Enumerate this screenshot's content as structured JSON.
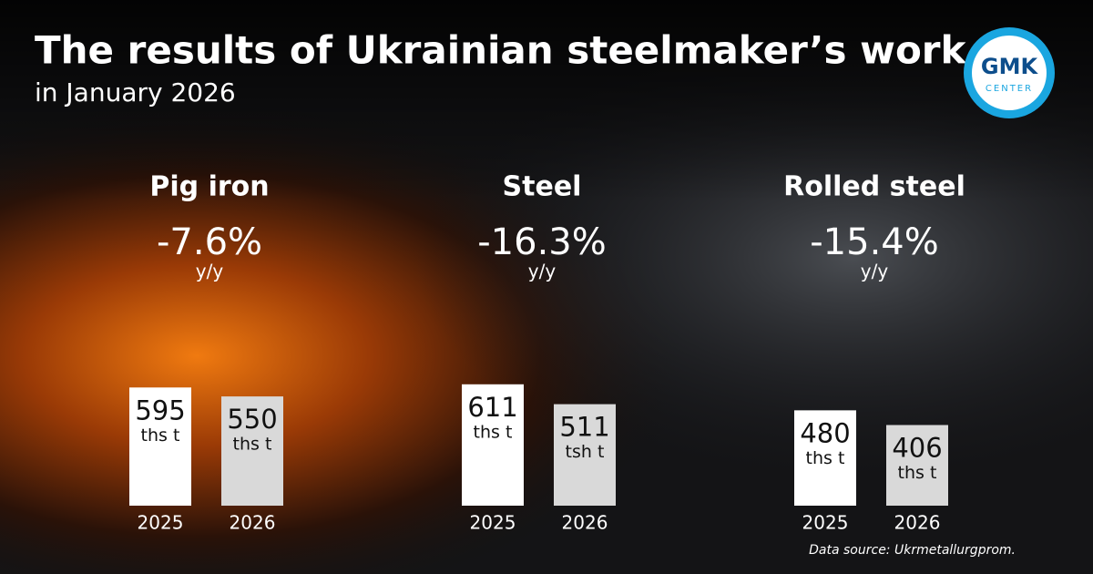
{
  "header": {
    "title": "The results of Ukrainian steelmaker’s work",
    "subtitle": "in January 2026"
  },
  "logo": {
    "text": "GMK",
    "subtext": "CENTER"
  },
  "chart_data": [
    {
      "type": "bar",
      "title": "Pig iron",
      "change": "-7.6%",
      "change_label": "y/y",
      "categories": [
        "2025",
        "2026"
      ],
      "values": [
        595,
        550
      ],
      "units": [
        "ths t",
        "ths t"
      ],
      "colors": [
        "#ffffff",
        "#d9d9d9"
      ]
    },
    {
      "type": "bar",
      "title": "Steel",
      "change": "-16.3%",
      "change_label": "y/y",
      "categories": [
        "2025",
        "2026"
      ],
      "values": [
        611,
        511
      ],
      "units": [
        "ths t",
        "tsh t"
      ],
      "colors": [
        "#ffffff",
        "#d9d9d9"
      ]
    },
    {
      "type": "bar",
      "title": "Rolled steel",
      "change": "-15.4%",
      "change_label": "y/y",
      "categories": [
        "2025",
        "2026"
      ],
      "values": [
        480,
        406
      ],
      "units": [
        "ths t",
        "ths t"
      ],
      "colors": [
        "#ffffff",
        "#d9d9d9"
      ]
    }
  ],
  "source": "Data source: Ukrmetallurgprom."
}
